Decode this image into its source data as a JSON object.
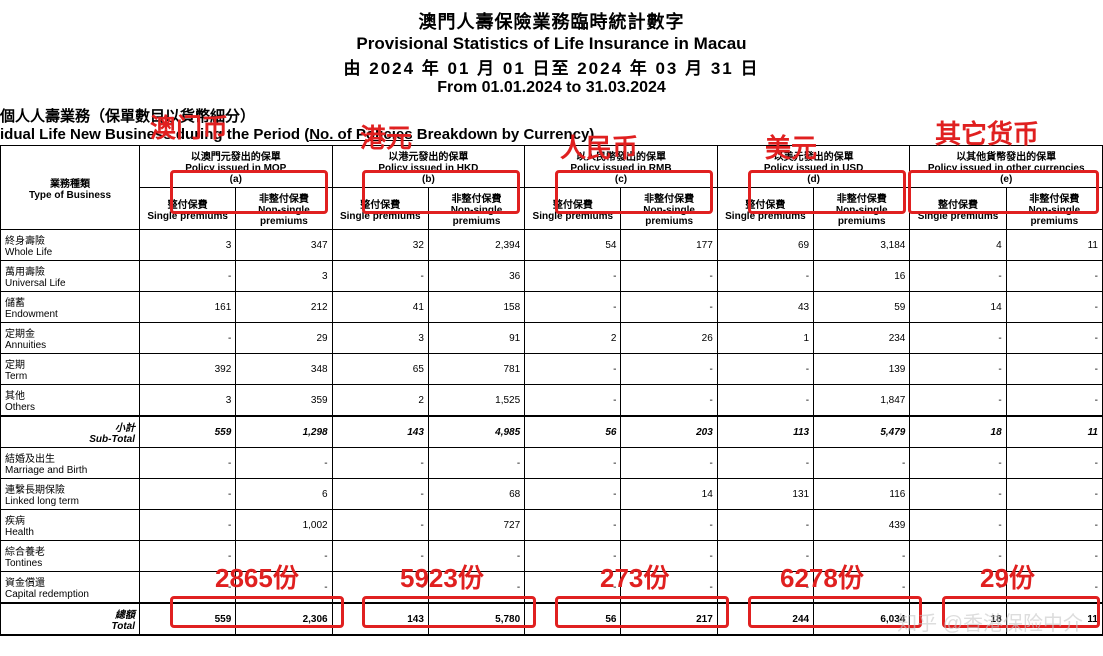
{
  "title": {
    "cn": "澳門人壽保險業務臨時統計數字",
    "en": "Provisional Statistics of Life Insurance in Macau",
    "date_cn": "由 2024 年 01 月 01 日至 2024 年 03 月 31 日",
    "date_en": "From 01.01.2024 to 31.03.2024"
  },
  "subheading": {
    "cn": "個人人壽業務（保單數目以貨幣細分）",
    "en_pre": "idual Life New Business during the Period (",
    "en_u": "No. of Policies",
    "en_post": " Breakdown by Currency)"
  },
  "col_groups": {
    "type_cn": "業務種類",
    "type_en": "Type of Business",
    "mop_cn": "以澳門元發出的保單",
    "mop_en": "Policy issued in MOP",
    "mop_tag": "(a)",
    "hkd_cn": "以港元發出的保單",
    "hkd_en": "Policy issued in HKD",
    "hkd_tag": "(b)",
    "rmb_cn": "以人民幣發出的保單",
    "rmb_en": "Policy issued in RMB",
    "rmb_tag": "(c)",
    "usd_cn": "以美元發出的保單",
    "usd_en": "Policy issued in USD",
    "usd_tag": "(d)",
    "oth_cn": "以其他貨幣發出的保單",
    "oth_en": "Policy issued in other currencies",
    "oth_tag": "(e)",
    "sub_sp_cn": "整付保費",
    "sub_sp_en": "Single premiums",
    "sub_np_cn": "非整付保費",
    "sub_np_en": "Non-single premiums"
  },
  "rows": [
    {
      "cn": "終身壽險",
      "en": "Whole Life",
      "v": [
        "3",
        "347",
        "32",
        "2,394",
        "54",
        "177",
        "69",
        "3,184",
        "4",
        "11"
      ]
    },
    {
      "cn": "萬用壽險",
      "en": "Universal Life",
      "v": [
        "-",
        "3",
        "-",
        "36",
        "-",
        "-",
        "-",
        "16",
        "-",
        "-"
      ]
    },
    {
      "cn": "儲蓄",
      "en": "Endowment",
      "v": [
        "161",
        "212",
        "41",
        "158",
        "-",
        "-",
        "43",
        "59",
        "14",
        "-"
      ]
    },
    {
      "cn": "定期金",
      "en": "Annuities",
      "v": [
        "-",
        "29",
        "3",
        "91",
        "2",
        "26",
        "1",
        "234",
        "-",
        "-"
      ]
    },
    {
      "cn": "定期",
      "en": "Term",
      "v": [
        "392",
        "348",
        "65",
        "781",
        "-",
        "-",
        "-",
        "139",
        "-",
        "-"
      ]
    },
    {
      "cn": "其他",
      "en": "Others",
      "v": [
        "3",
        "359",
        "2",
        "1,525",
        "-",
        "-",
        "-",
        "1,847",
        "-",
        "-"
      ]
    }
  ],
  "subtotal": {
    "cn": "小計",
    "en": "Sub-Total",
    "v": [
      "559",
      "1,298",
      "143",
      "4,985",
      "56",
      "203",
      "113",
      "5,479",
      "18",
      "11"
    ]
  },
  "rows2": [
    {
      "cn": "結婚及出生",
      "en": "Marriage and Birth",
      "v": [
        "-",
        "-",
        "-",
        "-",
        "-",
        "-",
        "-",
        "-",
        "-",
        "-"
      ]
    },
    {
      "cn": "連繫長期保險",
      "en": "Linked long term",
      "v": [
        "-",
        "6",
        "-",
        "68",
        "-",
        "14",
        "131",
        "116",
        "-",
        "-"
      ]
    },
    {
      "cn": "疾病",
      "en": "Health",
      "v": [
        "-",
        "1,002",
        "-",
        "727",
        "-",
        "-",
        "-",
        "439",
        "-",
        "-"
      ]
    },
    {
      "cn": "綜合養老",
      "en": "Tontines",
      "v": [
        "-",
        "-",
        "-",
        "-",
        "-",
        "-",
        "-",
        "-",
        "-",
        "-"
      ]
    },
    {
      "cn": "資金償還",
      "en": "Capital redemption",
      "v": [
        "-",
        "-",
        "-",
        "-",
        "-",
        "-",
        "-",
        "-",
        "-",
        "-"
      ]
    }
  ],
  "total": {
    "cn": "總額",
    "en": "Total",
    "v": [
      "559",
      "2,306",
      "143",
      "5,780",
      "56",
      "217",
      "244",
      "6,034",
      "18",
      "11"
    ]
  },
  "annotations": {
    "top": [
      "澳门币",
      "港元",
      "人民币",
      "美元",
      "其它货币"
    ],
    "bottom": [
      "2865份",
      "5923份",
      "273份",
      "6278份",
      "29份"
    ]
  },
  "watermark": "知乎 @香港保险中介",
  "style": {
    "anno_color": "#e02020",
    "anno_font_size": 26,
    "redbox_border": "3px solid #e02020",
    "table_font_size": 10,
    "col_type_width": 130,
    "col_num_width": 88
  }
}
